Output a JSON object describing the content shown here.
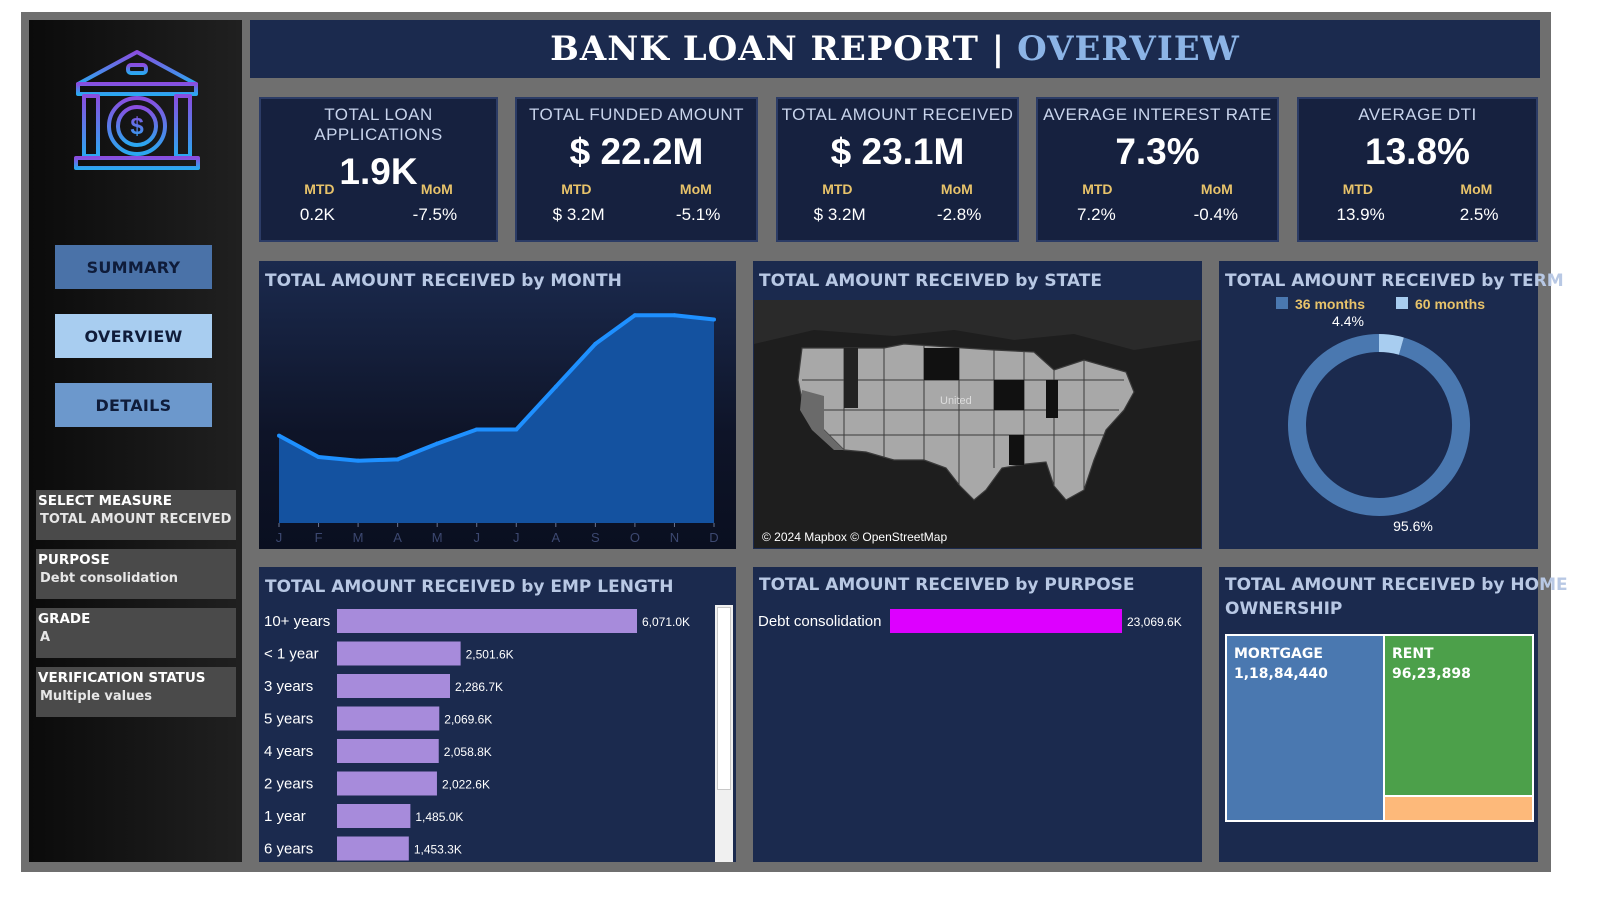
{
  "header": {
    "title": "BANK LOAN REPORT |",
    "title_accent": "OVERVIEW"
  },
  "nav": {
    "summary": "SUMMARY",
    "overview": "OVERVIEW",
    "details": "DETAILS"
  },
  "filters": [
    {
      "title": "SELECT MEASURE",
      "value": "TOTAL AMOUNT RECEIVED"
    },
    {
      "title": "PURPOSE",
      "value": "Debt consolidation"
    },
    {
      "title": "GRADE",
      "value": "A"
    },
    {
      "title": "VERIFICATION STATUS",
      "value": "Multiple values"
    }
  ],
  "kpis": [
    {
      "title": "TOTAL LOAN APPLICATIONS",
      "value": "1.9K",
      "mtd_label": "MTD",
      "mtd": "0.2K",
      "mom_label": "MoM",
      "mom": "-7.5%"
    },
    {
      "title": "TOTAL FUNDED AMOUNT",
      "value": "$ 22.2M",
      "mtd_label": "MTD",
      "mtd": "$ 3.2M",
      "mom_label": "MoM",
      "mom": "-5.1%"
    },
    {
      "title": "TOTAL  AMOUNT RECEIVED",
      "value": "$ 23.1M",
      "mtd_label": "MTD",
      "mtd": "$ 3.2M",
      "mom_label": "MoM",
      "mom": "-2.8%"
    },
    {
      "title": "AVERAGE INTEREST RATE",
      "value": "7.3%",
      "mtd_label": "MTD",
      "mtd": "7.2%",
      "mom_label": "MoM",
      "mom": "-0.4%"
    },
    {
      "title": "AVERAGE DTI",
      "value": "13.8%",
      "mtd_label": "MTD",
      "mtd": "13.9%",
      "mom_label": "MoM",
      "mom": "2.5%"
    }
  ],
  "panels": {
    "month": "TOTAL AMOUNT RECEIVED by MONTH",
    "state": "TOTAL AMOUNT RECEIVED by STATE",
    "term": "TOTAL AMOUNT RECEIVED by TERM",
    "emp": "TOTAL AMOUNT RECEIVED by EMP LENGTH",
    "purpose": "TOTAL AMOUNT RECEIVED by PURPOSE",
    "home_1": "TOTAL AMOUNT RECEIVED by HOME",
    "home_2": "OWNERSHIP"
  },
  "map": {
    "label": "United",
    "attribution": "© 2024 Mapbox © OpenStreetMap"
  },
  "colors": {
    "accent": "#1e90ff",
    "area": "#1452a0",
    "bar": "#a78bdb",
    "purpose_bar": "#dd00ff",
    "term_36": "#4a78b0",
    "term_60": "#a8cdf0",
    "mortgage": "#4a78b0",
    "rent": "#4ca04a",
    "other": "#fdb97a"
  },
  "chart_data": [
    {
      "type": "area",
      "title": "TOTAL AMOUNT RECEIVED by MONTH",
      "categories": [
        "J",
        "F",
        "M",
        "A",
        "M",
        "J",
        "J",
        "A",
        "S",
        "O",
        "N",
        "D"
      ],
      "values": [
        1.43,
        1.08,
        1.02,
        1.04,
        1.3,
        1.53,
        1.53,
        2.23,
        2.93,
        3.4,
        3.4,
        3.33
      ]
    },
    {
      "type": "pie",
      "title": "TOTAL AMOUNT RECEIVED by TERM",
      "labels": [
        "36 months",
        "60 months"
      ],
      "values": [
        95.6,
        4.4
      ],
      "value_labels": [
        "95.6%",
        "4.4%"
      ]
    },
    {
      "type": "bar",
      "title": "TOTAL AMOUNT RECEIVED by EMP LENGTH",
      "categories": [
        "10+ years",
        "< 1 year",
        "3 years",
        "5 years",
        "4 years",
        "2 years",
        "1 year",
        "6 years"
      ],
      "values": [
        6071.0,
        2501.6,
        2286.7,
        2069.6,
        2058.8,
        2022.6,
        1485.0,
        1453.3
      ],
      "value_labels": [
        "6,071.0K",
        "2,501.6K",
        "2,286.7K",
        "2,069.6K",
        "2,058.8K",
        "2,022.6K",
        "1,485.0K",
        "1,453.3K"
      ]
    },
    {
      "type": "bar",
      "title": "TOTAL AMOUNT RECEIVED by PURPOSE",
      "categories": [
        "Debt consolidation"
      ],
      "values": [
        23069.6
      ],
      "value_labels": [
        "23,069.6K"
      ]
    },
    {
      "type": "treemap",
      "title": "TOTAL AMOUNT RECEIVED by HOME OWNERSHIP",
      "items": [
        {
          "label": "MORTGAGE",
          "value": 11884440,
          "display": "1,18,84,440"
        },
        {
          "label": "RENT",
          "value": 9623898,
          "display": "96,23,898"
        },
        {
          "label": "",
          "value": 1561300,
          "display": ""
        }
      ]
    }
  ]
}
